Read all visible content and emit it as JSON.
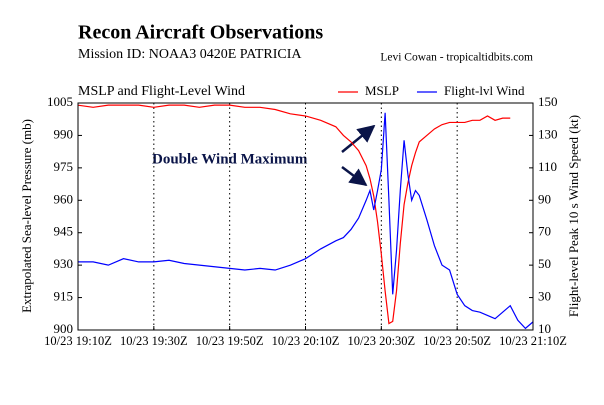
{
  "chart_data": {
    "type": "line",
    "title": "Recon Aircraft Observations",
    "subtitle": "Mission ID: NOAA3 0420E PATRICIA",
    "credit": "Levi Cowan - tropicaltidbits.com",
    "panel_title": "MSLP and Flight-Level Wind",
    "annotation": "Double Wind Maximum",
    "ylabel": "Extrapolated Sea-level Pressure (mb)",
    "y2label": "Flight-level Peak 10 s Wind Speed (kt)",
    "x": [
      "10/23 19:10Z",
      "10/23 19:14Z",
      "10/23 19:18Z",
      "10/23 19:22Z",
      "10/23 19:26Z",
      "10/23 19:30Z",
      "10/23 19:34Z",
      "10/23 19:38Z",
      "10/23 19:42Z",
      "10/23 19:46Z",
      "10/23 19:50Z",
      "10/23 19:54Z",
      "10/23 19:58Z",
      "10/23 20:02Z",
      "10/23 20:06Z",
      "10/23 20:10Z",
      "10/23 20:14Z",
      "10/23 20:18Z",
      "10/23 20:20Z",
      "10/23 20:22Z",
      "10/23 20:24Z",
      "10/23 20:26Z",
      "10/23 20:27Z",
      "10/23 20:28Z",
      "10/23 20:29Z",
      "10/23 20:30Z",
      "10/23 20:31Z",
      "10/23 20:32Z",
      "10/23 20:33Z",
      "10/23 20:34Z",
      "10/23 20:35Z",
      "10/23 20:36Z",
      "10/23 20:37Z",
      "10/23 20:38Z",
      "10/23 20:39Z",
      "10/23 20:40Z",
      "10/23 20:42Z",
      "10/23 20:44Z",
      "10/23 20:46Z",
      "10/23 20:48Z",
      "10/23 20:50Z",
      "10/23 20:52Z",
      "10/23 20:54Z",
      "10/23 20:56Z",
      "10/23 20:58Z",
      "10/23 21:00Z",
      "10/23 21:02Z",
      "10/23 21:04Z",
      "10/23 21:06Z",
      "10/23 21:08Z",
      "10/23 21:10Z"
    ],
    "series": [
      {
        "name": "MSLP",
        "color": "#ff0000",
        "values": [
          1004,
          1003,
          1004,
          1004,
          1004,
          1003,
          1004,
          1004,
          1003,
          1004,
          1004,
          1003,
          1003,
          1002,
          1000,
          999,
          997,
          994,
          990,
          987,
          983,
          976,
          970,
          962,
          950,
          935,
          918,
          903,
          904,
          918,
          940,
          958,
          968,
          976,
          982,
          987,
          990,
          993,
          995,
          996,
          996,
          996,
          997,
          997,
          999,
          997,
          998,
          998,
          null,
          null,
          null
        ]
      },
      {
        "name": "Flight-lvl Wind",
        "color": "#0000ff",
        "axis": "y2",
        "values": [
          52,
          52,
          50,
          54,
          52,
          52,
          53,
          51,
          50,
          49,
          48,
          47,
          48,
          47,
          50,
          54,
          60,
          65,
          67,
          72,
          79,
          90,
          96,
          84,
          96,
          109,
          144,
          90,
          32,
          59,
          96,
          127,
          106,
          90,
          96,
          93,
          78,
          62,
          50,
          47,
          32,
          25,
          22,
          21,
          19,
          17,
          21,
          25,
          16,
          11,
          15
        ]
      }
    ],
    "xlim": [
      "10/23 19:10Z",
      "10/23 21:10Z"
    ],
    "xticks": [
      "10/23 19:10Z",
      "10/23 19:30Z",
      "10/23 19:50Z",
      "10/23 20:10Z",
      "10/23 20:30Z",
      "10/23 20:50Z",
      "10/23 21:10Z"
    ],
    "ylim": [
      900,
      1005
    ],
    "yticks": [
      900,
      915,
      930,
      945,
      960,
      975,
      990,
      1005
    ],
    "y2lim": [
      10,
      150
    ],
    "y2ticks": [
      10,
      30,
      50,
      70,
      90,
      110,
      130,
      150
    ],
    "grid": true,
    "legend": "upper right"
  }
}
